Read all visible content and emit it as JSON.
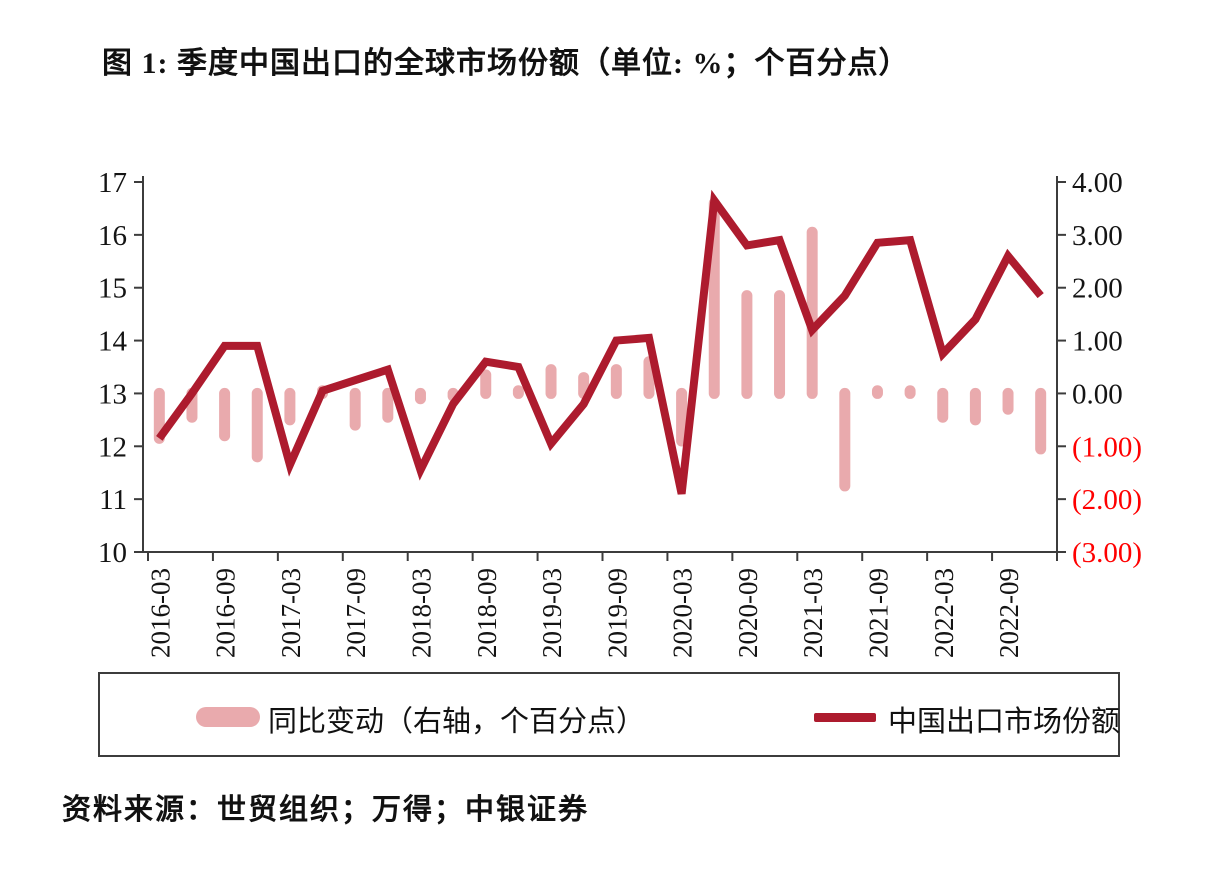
{
  "title": "图 1: 季度中国出口的全球市场份额（单位: %；个百分点）",
  "source": "资料来源：世贸组织；万得；中银证券",
  "legend": {
    "bar_label": "同比变动（右轴，个百分点）",
    "line_label": "中国出口市场份额"
  },
  "colors": {
    "line": "#AD1B2E",
    "bar": "#E9AAAD",
    "axis": "#3c3c3c",
    "text": "#141414",
    "negative_label": "#FF0000",
    "background": "#ffffff"
  },
  "chart_data": {
    "type": "line+bar",
    "quarters": [
      "2016-03",
      "2016-06",
      "2016-09",
      "2016-12",
      "2017-03",
      "2017-06",
      "2017-09",
      "2017-12",
      "2018-03",
      "2018-06",
      "2018-09",
      "2018-12",
      "2019-03",
      "2019-06",
      "2019-09",
      "2019-12",
      "2020-03",
      "2020-06",
      "2020-09",
      "2020-12",
      "2021-03",
      "2021-06",
      "2021-09",
      "2021-12",
      "2022-03",
      "2022-06",
      "2022-09",
      "2022-12"
    ],
    "x_tick_labels": [
      "2016-03",
      "2016-09",
      "2017-03",
      "2017-09",
      "2018-03",
      "2018-09",
      "2019-03",
      "2019-09",
      "2020-03",
      "2020-09",
      "2021-03",
      "2021-09",
      "2022-03",
      "2022-09"
    ],
    "left_axis": {
      "min": 10,
      "max": 17,
      "ticks": [
        17,
        16,
        15,
        14,
        13,
        12,
        11,
        10
      ]
    },
    "right_axis": {
      "min": -3,
      "max": 4,
      "ticks": [
        {
          "v": 4,
          "label": "4.00"
        },
        {
          "v": 3,
          "label": "3.00"
        },
        {
          "v": 2,
          "label": "2.00"
        },
        {
          "v": 1,
          "label": "1.00"
        },
        {
          "v": 0,
          "label": "0.00"
        },
        {
          "v": -1,
          "label": "(1.00)"
        },
        {
          "v": -2,
          "label": "(2.00)"
        },
        {
          "v": -3,
          "label": "(3.00)"
        }
      ]
    },
    "series": [
      {
        "name": "同比变动（右轴，个百分点）",
        "type": "bar",
        "axis": "right",
        "values": [
          -0.85,
          -0.45,
          -0.8,
          -1.2,
          -0.5,
          0.05,
          -0.6,
          -0.45,
          -0.1,
          -0.05,
          0.35,
          0.05,
          0.45,
          0.3,
          0.45,
          0.6,
          -0.9,
          3.6,
          1.85,
          1.85,
          3.05,
          -1.75,
          0.05,
          0.05,
          -0.45,
          -0.5,
          -0.3,
          -1.05
        ]
      },
      {
        "name": "中国出口市场份额",
        "type": "line",
        "axis": "left",
        "values": [
          12.15,
          13.0,
          13.9,
          13.9,
          11.65,
          13.05,
          13.25,
          13.45,
          11.55,
          12.8,
          13.6,
          13.5,
          12.05,
          12.8,
          14.0,
          14.05,
          11.1,
          16.65,
          15.8,
          15.9,
          14.2,
          14.85,
          15.85,
          15.9,
          13.75,
          14.4,
          15.6,
          14.85
        ]
      }
    ],
    "legend_position": "bottom",
    "grid": false
  }
}
